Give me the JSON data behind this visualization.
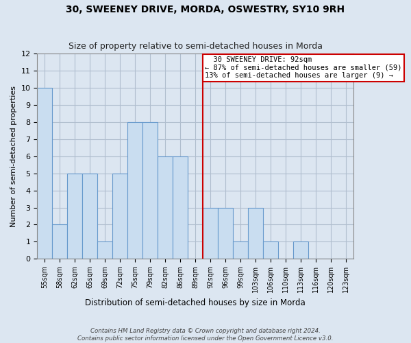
{
  "title": "30, SWEENEY DRIVE, MORDA, OSWESTRY, SY10 9RH",
  "subtitle": "Size of property relative to semi-detached houses in Morda",
  "xlabel": "Distribution of semi-detached houses by size in Morda",
  "ylabel": "Number of semi-detached properties",
  "footnote1": "Contains HM Land Registry data © Crown copyright and database right 2024.",
  "footnote2": "Contains public sector information licensed under the Open Government Licence v3.0.",
  "bar_labels": [
    "55sqm",
    "58sqm",
    "62sqm",
    "65sqm",
    "69sqm",
    "72sqm",
    "75sqm",
    "79sqm",
    "82sqm",
    "86sqm",
    "89sqm",
    "92sqm",
    "96sqm",
    "99sqm",
    "103sqm",
    "106sqm",
    "110sqm",
    "113sqm",
    "116sqm",
    "120sqm",
    "123sqm"
  ],
  "bar_heights": [
    10,
    2,
    5,
    5,
    1,
    5,
    8,
    8,
    6,
    6,
    0,
    3,
    3,
    1,
    3,
    1,
    0,
    1,
    0,
    0,
    0
  ],
  "bar_color": "#c9ddf0",
  "bar_edgecolor": "#6699cc",
  "property_bar_index": 11,
  "property_line_color": "#cc0000",
  "annotation_title": "30 SWEENEY DRIVE: 92sqm",
  "annotation_line1": "← 87% of semi-detached houses are smaller (59)",
  "annotation_line2": "13% of semi-detached houses are larger (9) →",
  "annotation_box_color": "white",
  "annotation_box_edgecolor": "#cc0000",
  "ylim": [
    0,
    12
  ],
  "yticks": [
    0,
    1,
    2,
    3,
    4,
    5,
    6,
    7,
    8,
    9,
    10,
    11,
    12
  ],
  "background_color": "#dce6f1",
  "plot_background_color": "#dce6f1",
  "grid_color": "#b0bece",
  "title_fontsize": 10,
  "subtitle_fontsize": 9
}
